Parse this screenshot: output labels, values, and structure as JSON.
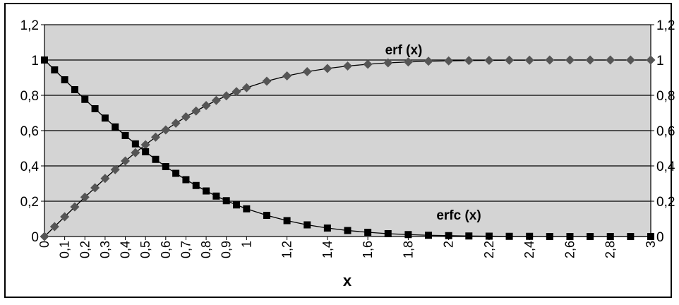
{
  "chart_data": {
    "type": "line",
    "title": "",
    "xlabel": "x",
    "ylabel": "",
    "ylim": [
      0,
      1.2
    ],
    "xlim": [
      0,
      3
    ],
    "grid": true,
    "legend": "none",
    "yticks": [
      "0",
      "0,2",
      "0,4",
      "0,6",
      "0,8",
      "1",
      "1,2"
    ],
    "xticks": [
      "0",
      "0,1",
      "0,2",
      "0,3",
      "0,4",
      "0,5",
      "0,6",
      "0,7",
      "0,8",
      "0,9",
      "1",
      "1,2",
      "1,4",
      "1,6",
      "1,8",
      "2",
      "2,2",
      "2,4",
      "2,6",
      "2,8",
      "3"
    ],
    "plot_bg": "#d4d4d4",
    "x": [
      0,
      0.05,
      0.1,
      0.15,
      0.2,
      0.25,
      0.3,
      0.35,
      0.4,
      0.45,
      0.5,
      0.55,
      0.6,
      0.65,
      0.7,
      0.75,
      0.8,
      0.85,
      0.9,
      0.95,
      1.0,
      1.1,
      1.2,
      1.3,
      1.4,
      1.5,
      1.6,
      1.7,
      1.8,
      1.9,
      2.0,
      2.1,
      2.2,
      2.3,
      2.4,
      2.5,
      2.6,
      2.7,
      2.8,
      2.9,
      3.0
    ],
    "series": [
      {
        "name": "erf (x)",
        "marker": "diamond",
        "color": "#555555",
        "values": [
          0,
          0.056,
          0.112,
          0.168,
          0.223,
          0.276,
          0.329,
          0.379,
          0.428,
          0.475,
          0.52,
          0.563,
          0.604,
          0.642,
          0.678,
          0.711,
          0.742,
          0.771,
          0.797,
          0.821,
          0.843,
          0.88,
          0.91,
          0.934,
          0.952,
          0.966,
          0.976,
          0.984,
          0.989,
          0.993,
          0.995,
          0.997,
          0.998,
          0.999,
          0.999,
          1.0,
          1.0,
          1.0,
          1.0,
          1.0,
          1.0
        ]
      },
      {
        "name": "erfc (x)",
        "marker": "square",
        "color": "#000000",
        "values": [
          1.0,
          0.944,
          0.888,
          0.832,
          0.777,
          0.724,
          0.671,
          0.621,
          0.572,
          0.525,
          0.48,
          0.437,
          0.396,
          0.358,
          0.322,
          0.289,
          0.258,
          0.229,
          0.203,
          0.179,
          0.157,
          0.12,
          0.09,
          0.066,
          0.048,
          0.034,
          0.024,
          0.016,
          0.011,
          0.007,
          0.005,
          0.003,
          0.002,
          0.001,
          0.001,
          0.0,
          0.0,
          0.0,
          0.0,
          0.0,
          0.0
        ]
      }
    ]
  }
}
